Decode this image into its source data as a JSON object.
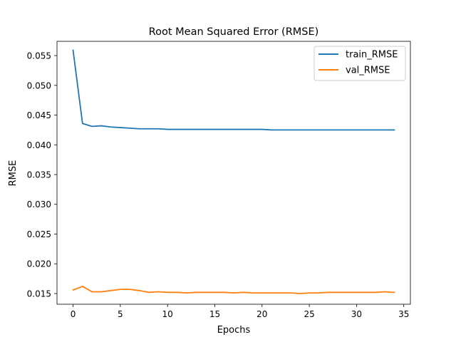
{
  "chart_data": {
    "type": "line",
    "title": "Root Mean Squared Error (RMSE)",
    "xlabel": "Epochs",
    "ylabel": "RMSE",
    "xlim": [
      -1.7,
      35.7
    ],
    "ylim": [
      0.0132,
      0.0574
    ],
    "xticks": [
      0,
      5,
      10,
      15,
      20,
      25,
      30,
      35
    ],
    "xtick_labels": [
      "0",
      "5",
      "10",
      "15",
      "20",
      "25",
      "30",
      "35"
    ],
    "yticks": [
      0.015,
      0.02,
      0.025,
      0.03,
      0.035,
      0.04,
      0.045,
      0.05,
      0.055
    ],
    "ytick_labels": [
      "0.015",
      "0.020",
      "0.025",
      "0.030",
      "0.035",
      "0.040",
      "0.045",
      "0.050",
      "0.055"
    ],
    "grid": false,
    "legend_position": "top-right",
    "x": [
      0,
      1,
      2,
      3,
      4,
      5,
      6,
      7,
      8,
      9,
      10,
      11,
      12,
      13,
      14,
      15,
      16,
      17,
      18,
      19,
      20,
      21,
      22,
      23,
      24,
      25,
      26,
      27,
      28,
      29,
      30,
      31,
      32,
      33,
      34
    ],
    "series": [
      {
        "name": "train_RMSE",
        "color": "#1f77b4",
        "values": [
          0.0559,
          0.0436,
          0.0431,
          0.0432,
          0.043,
          0.0429,
          0.0428,
          0.0427,
          0.0427,
          0.0427,
          0.0426,
          0.0426,
          0.0426,
          0.0426,
          0.0426,
          0.0426,
          0.0426,
          0.0426,
          0.0426,
          0.0426,
          0.0426,
          0.0425,
          0.0425,
          0.0425,
          0.0425,
          0.0425,
          0.0425,
          0.0425,
          0.0425,
          0.0425,
          0.0425,
          0.0425,
          0.0425,
          0.0425,
          0.0425
        ]
      },
      {
        "name": "val_RMSE",
        "color": "#ff7f0e",
        "values": [
          0.0156,
          0.0162,
          0.0153,
          0.0153,
          0.0155,
          0.0157,
          0.0157,
          0.0155,
          0.0152,
          0.0153,
          0.0152,
          0.0152,
          0.0151,
          0.0152,
          0.0152,
          0.0152,
          0.0152,
          0.0151,
          0.0152,
          0.0151,
          0.0151,
          0.0151,
          0.0151,
          0.0151,
          0.015,
          0.0151,
          0.0151,
          0.0152,
          0.0152,
          0.0152,
          0.0152,
          0.0152,
          0.0152,
          0.0153,
          0.0152
        ]
      }
    ]
  }
}
